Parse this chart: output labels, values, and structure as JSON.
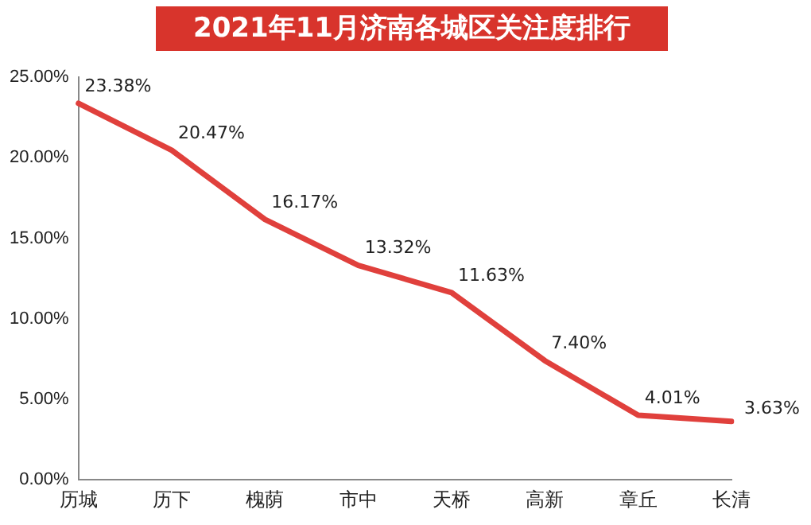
{
  "chart_data": {
    "type": "line",
    "title": "2021年11月济南各城区关注度排行",
    "categories": [
      "历城",
      "历下",
      "槐荫",
      "市中",
      "天桥",
      "高新",
      "章丘",
      "长清"
    ],
    "series": [
      {
        "color": "#e0403c",
        "values": [
          23.38,
          20.47,
          16.17,
          13.32,
          11.63,
          7.4,
          4.01,
          3.63
        ],
        "value_labels": [
          "23.38%",
          "20.47%",
          "16.17%",
          "13.32%",
          "11.63%",
          "7.40%",
          "4.01%",
          "3.63%"
        ]
      }
    ],
    "ylim": [
      0,
      25
    ],
    "yticks": [
      {
        "value": 0,
        "label": "0.00%"
      },
      {
        "value": 5,
        "label": "5.00%"
      },
      {
        "value": 10,
        "label": "10.00%"
      },
      {
        "value": 15,
        "label": "15.00%"
      },
      {
        "value": 20,
        "label": "20.00%"
      },
      {
        "value": 25,
        "label": "25.00%"
      }
    ],
    "grid": false,
    "legend": false,
    "marker": "none",
    "line_style": "solid"
  }
}
